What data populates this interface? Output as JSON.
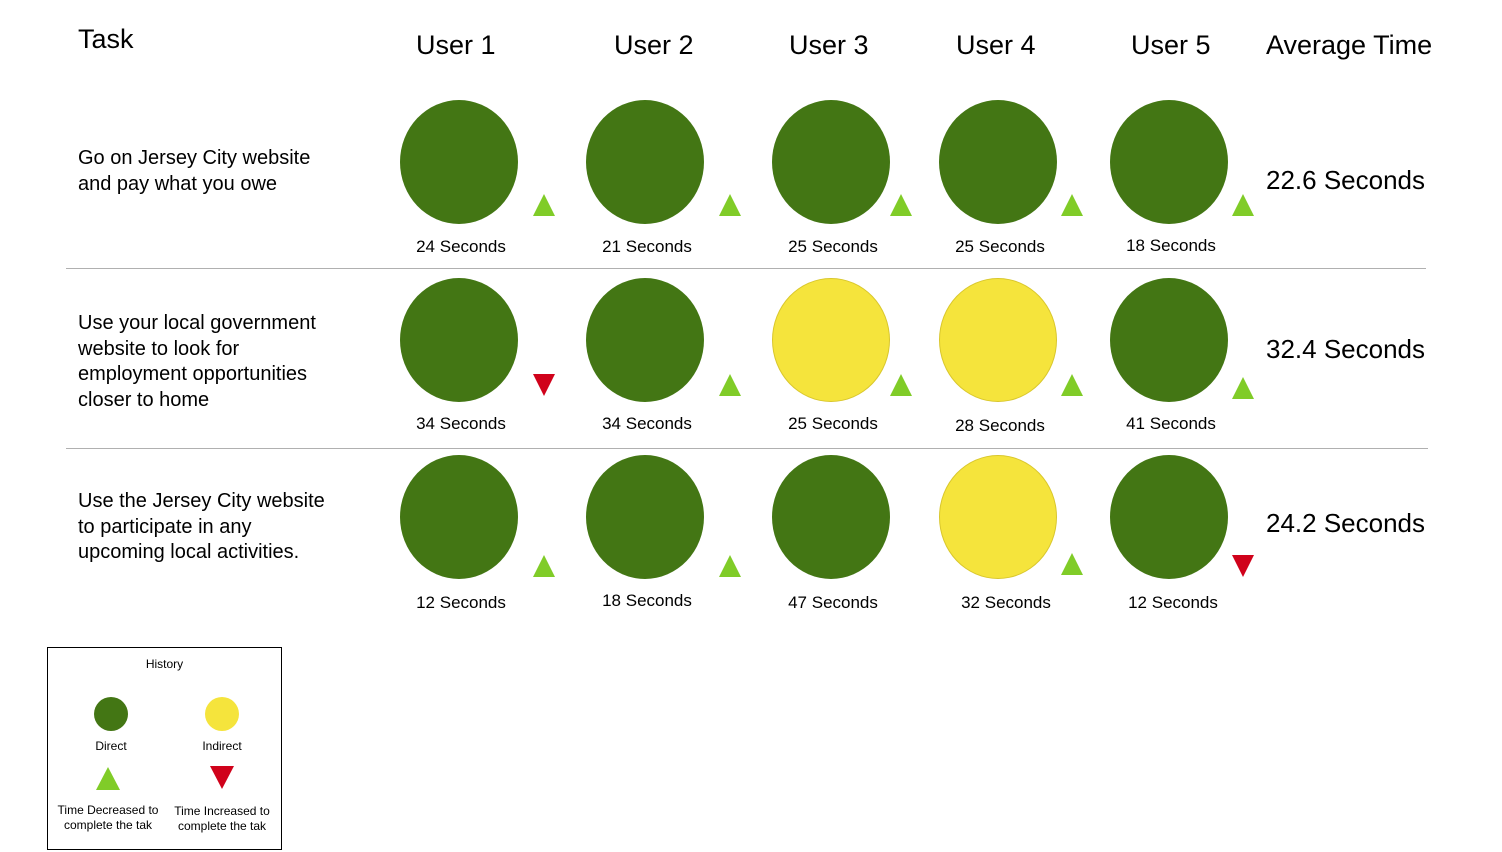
{
  "headers": {
    "task": "Task",
    "users": [
      "User 1",
      "User 2",
      "User 3",
      "User 4",
      "User 5"
    ],
    "average": "Average Time"
  },
  "tasks": [
    {
      "lines": [
        "Go on Jersey City website",
        "and pay what you owe"
      ],
      "average": "22.6 Seconds",
      "results": [
        {
          "path": "direct",
          "time": "24 Seconds",
          "trend": "decreased"
        },
        {
          "path": "direct",
          "time": "21 Seconds",
          "trend": "decreased"
        },
        {
          "path": "direct",
          "time": "25 Seconds",
          "trend": "decreased"
        },
        {
          "path": "direct",
          "time": "25 Seconds",
          "trend": "decreased"
        },
        {
          "path": "direct",
          "time": "18 Seconds",
          "trend": "decreased"
        }
      ]
    },
    {
      "lines": [
        "Use your local government",
        "website to look for",
        "employment opportunities",
        "closer to home"
      ],
      "average": "32.4 Seconds",
      "results": [
        {
          "path": "direct",
          "time": "34 Seconds",
          "trend": "increased"
        },
        {
          "path": "direct",
          "time": "34 Seconds",
          "trend": "decreased"
        },
        {
          "path": "indirect",
          "time": "25 Seconds",
          "trend": "decreased"
        },
        {
          "path": "indirect",
          "time": "28 Seconds",
          "trend": "decreased"
        },
        {
          "path": "direct",
          "time": "41 Seconds",
          "trend": "decreased"
        }
      ]
    },
    {
      "lines": [
        "Use the Jersey City website",
        "to participate in any",
        "upcoming local activities."
      ],
      "average": "24.2 Seconds",
      "results": [
        {
          "path": "direct",
          "time": "12 Seconds",
          "trend": "decreased"
        },
        {
          "path": "direct",
          "time": "18 Seconds",
          "trend": "decreased"
        },
        {
          "path": "direct",
          "time": "47 Seconds",
          "trend": "decreased"
        },
        {
          "path": "indirect",
          "time": "32 Seconds",
          "trend": "decreased"
        },
        {
          "path": "direct",
          "time": "12 Seconds",
          "trend": "increased"
        }
      ]
    }
  ],
  "legend": {
    "title": "History",
    "direct": "Direct",
    "indirect": "Indirect",
    "decreased": [
      "Time Decreased to",
      "complete the tak"
    ],
    "increased": [
      "Time Increased to",
      "complete the tak"
    ]
  },
  "colors": {
    "direct": "#437614",
    "indirect": "#f5e43c",
    "decreased": "#80cc28",
    "increased": "#d0021b"
  },
  "icons": {
    "direct": "filled-circle-green",
    "indirect": "filled-circle-yellow",
    "decreased": "triangle-up",
    "increased": "triangle-down"
  }
}
